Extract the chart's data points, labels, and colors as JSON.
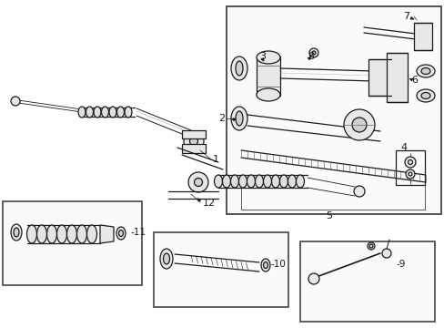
{
  "bg_color": "#ffffff",
  "lc": "#1a1a1a",
  "fc_light": "#e8e8e8",
  "fc_mid": "#d0d0d0",
  "fc_dark": "#b8b8b8",
  "lw": 0.9,
  "lw_thin": 0.5,
  "lw_thick": 1.3,
  "figsize": [
    4.89,
    3.6
  ],
  "dpi": 100
}
